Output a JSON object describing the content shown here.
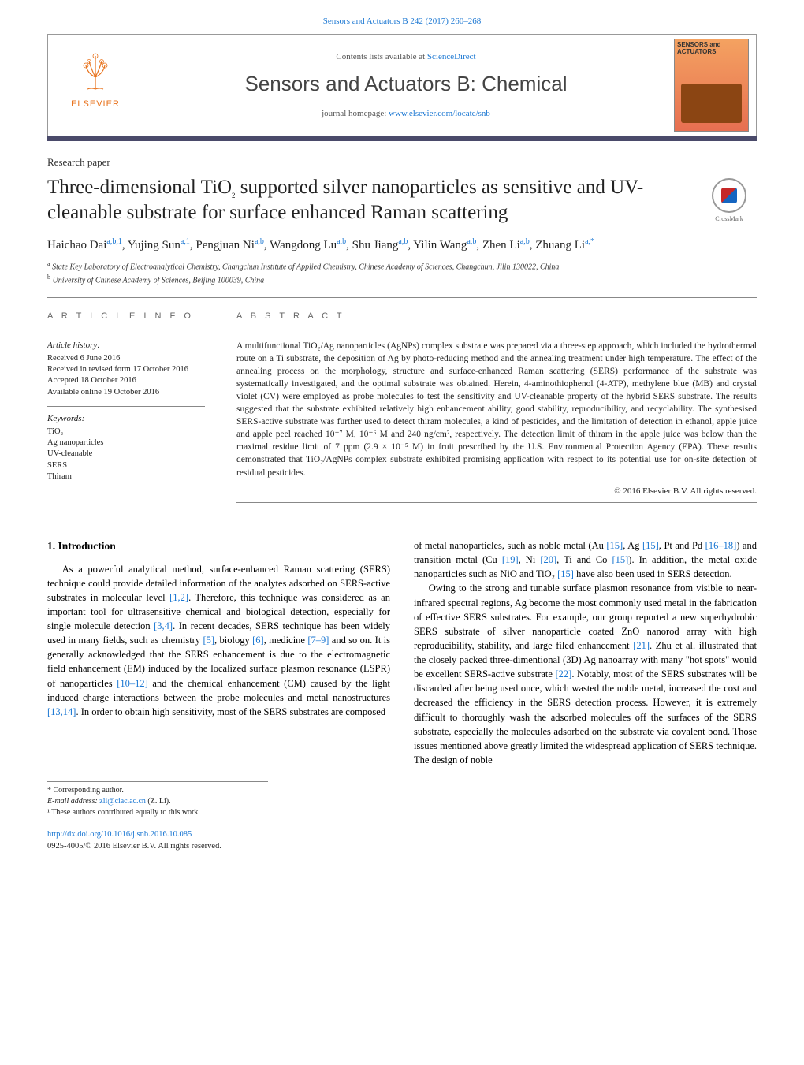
{
  "top_link": {
    "text": "Sensors and Actuators B 242 (2017) 260–268"
  },
  "header": {
    "elsevier_label": "ELSEVIER",
    "contents_pre": "Contents lists available at ",
    "contents_link": "ScienceDirect",
    "journal_name": "Sensors and Actuators B: Chemical",
    "homepage_pre": "journal homepage: ",
    "homepage_link": "www.elsevier.com/locate/snb",
    "cover_title": "SENSORS and ACTUATORS"
  },
  "article_type": "Research paper",
  "title_pre": "Three-dimensional TiO",
  "title_sub": "2",
  "title_post": " supported silver nanoparticles as sensitive and UV-cleanable substrate for surface enhanced Raman scattering",
  "crossmark_label": "CrossMark",
  "authors": [
    {
      "name": "Haichao Dai",
      "sup": "a,b,1"
    },
    {
      "name": "Yujing Sun",
      "sup": "a,1"
    },
    {
      "name": "Pengjuan Ni",
      "sup": "a,b"
    },
    {
      "name": "Wangdong Lu",
      "sup": "a,b"
    },
    {
      "name": "Shu Jiang",
      "sup": "a,b"
    },
    {
      "name": "Yilin Wang",
      "sup": "a,b"
    },
    {
      "name": "Zhen Li",
      "sup": "a,b"
    },
    {
      "name": "Zhuang Li",
      "sup": "a,*"
    }
  ],
  "affiliations": [
    {
      "sup": "a",
      "text": "State Key Laboratory of Electroanalytical Chemistry, Changchun Institute of Applied Chemistry, Chinese Academy of Sciences, Changchun, Jilin 130022, China"
    },
    {
      "sup": "b",
      "text": "University of Chinese Academy of Sciences, Beijing 100039, China"
    }
  ],
  "info_head": "A R T I C L E  I N F O",
  "abstract_head": "A B S T R A C T",
  "history_head": "Article history:",
  "history": [
    "Received 6 June 2016",
    "Received in revised form 17 October 2016",
    "Accepted 18 October 2016",
    "Available online 19 October 2016"
  ],
  "keywords_head": "Keywords:",
  "keywords": [
    "TiO₂",
    "Ag nanoparticles",
    "UV-cleanable",
    "SERS",
    "Thiram"
  ],
  "abstract": "A multifunctional TiO₂/Ag nanoparticles (AgNPs) complex substrate was prepared via a three-step approach, which included the hydrothermal route on a Ti substrate, the deposition of Ag by photo-reducing method and the annealing treatment under high temperature. The effect of the annealing process on the morphology, structure and surface-enhanced Raman scattering (SERS) performance of the substrate was systematically investigated, and the optimal substrate was obtained. Herein, 4-aminothiophenol (4-ATP), methylene blue (MB) and crystal violet (CV) were employed as probe molecules to test the sensitivity and UV-cleanable property of the hybrid SERS substrate. The results suggested that the substrate exhibited relatively high enhancement ability, good stability, reproducibility, and recyclability. The synthesised SERS-active substrate was further used to detect thiram molecules, a kind of pesticides, and the limitation of detection in ethanol, apple juice and apple peel reached 10⁻⁷ M, 10⁻⁶ M and 240 ng/cm², respectively. The detection limit of thiram in the apple juice was below than the maximal residue limit of 7 ppm (2.9 × 10⁻⁵ M) in fruit prescribed by the U.S. Environmental Protection Agency (EPA). These results demonstrated that TiO₂/AgNPs complex substrate exhibited promising application with respect to its potential use for on-site detection of residual pesticides.",
  "copyright": "© 2016 Elsevier B.V. All rights reserved.",
  "intro_head": "1. Introduction",
  "col1_p1": "As a powerful analytical method, surface-enhanced Raman scattering (SERS) technique could provide detailed information of the analytes adsorbed on SERS-active substrates in molecular level [1,2]. Therefore, this technique was considered as an important tool for ultrasensitive chemical and biological detection, especially for single molecule detection [3,4]. In recent decades, SERS technique has been widely used in many fields, such as chemistry [5], biology [6], medicine [7–9] and so on. It is generally acknowledged that the SERS enhancement is due to the electromagnetic field enhancement (EM) induced by the localized surface plasmon resonance (LSPR) of nanoparticles [10–12] and the chemical enhancement (CM) caused by the light induced charge interactions between the probe molecules and metal nanostructures [13,14]. In order to obtain high sensitivity, most of the SERS substrates are composed",
  "col2_p0": "of metal nanoparticles, such as noble metal (Au [15], Ag [15], Pt and Pd [16–18]) and transition metal (Cu [19], Ni [20], Ti and Co [15]). In addition, the metal oxide nanoparticles such as NiO and TiO₂ [15] have also been used in SERS detection.",
  "col2_p1": "Owing to the strong and tunable surface plasmon resonance from visible to near-infrared spectral regions, Ag become the most commonly used metal in the fabrication of effective SERS substrates. For example, our group reported a new superhydrobic SERS substrate of silver nanoparticle coated ZnO nanorod array with high reproducibility, stability, and large filed enhancement [21]. Zhu et al. illustrated that the closely packed three-dimentional (3D) Ag nanoarray with many \"hot spots\" would be excellent SERS-active substrate [22]. Notably, most of the SERS substrates will be discarded after being used once, which wasted the noble metal, increased the cost and decreased the efficiency in the SERS detection process. However, it is extremely difficult to thoroughly wash the adsorbed molecules off the surfaces of the SERS substrate, especially the molecules adsorbed on the substrate via covalent bond. Those issues mentioned above greatly limited the widespread application of SERS technique. The design of noble",
  "footnotes": {
    "corr": "* Corresponding author.",
    "email_pre": "E-mail address: ",
    "email": "zli@ciac.ac.cn",
    "email_post": " (Z. Li).",
    "equal": "¹ These authors contributed equally to this work."
  },
  "doi": {
    "link": "http://dx.doi.org/10.1016/j.snb.2016.10.085",
    "line2": "0925-4005/© 2016 Elsevier B.V. All rights reserved."
  },
  "colors": {
    "link": "#1976d2",
    "elsevier_orange": "#e8711a",
    "darkbar": "#4a4a6a"
  }
}
